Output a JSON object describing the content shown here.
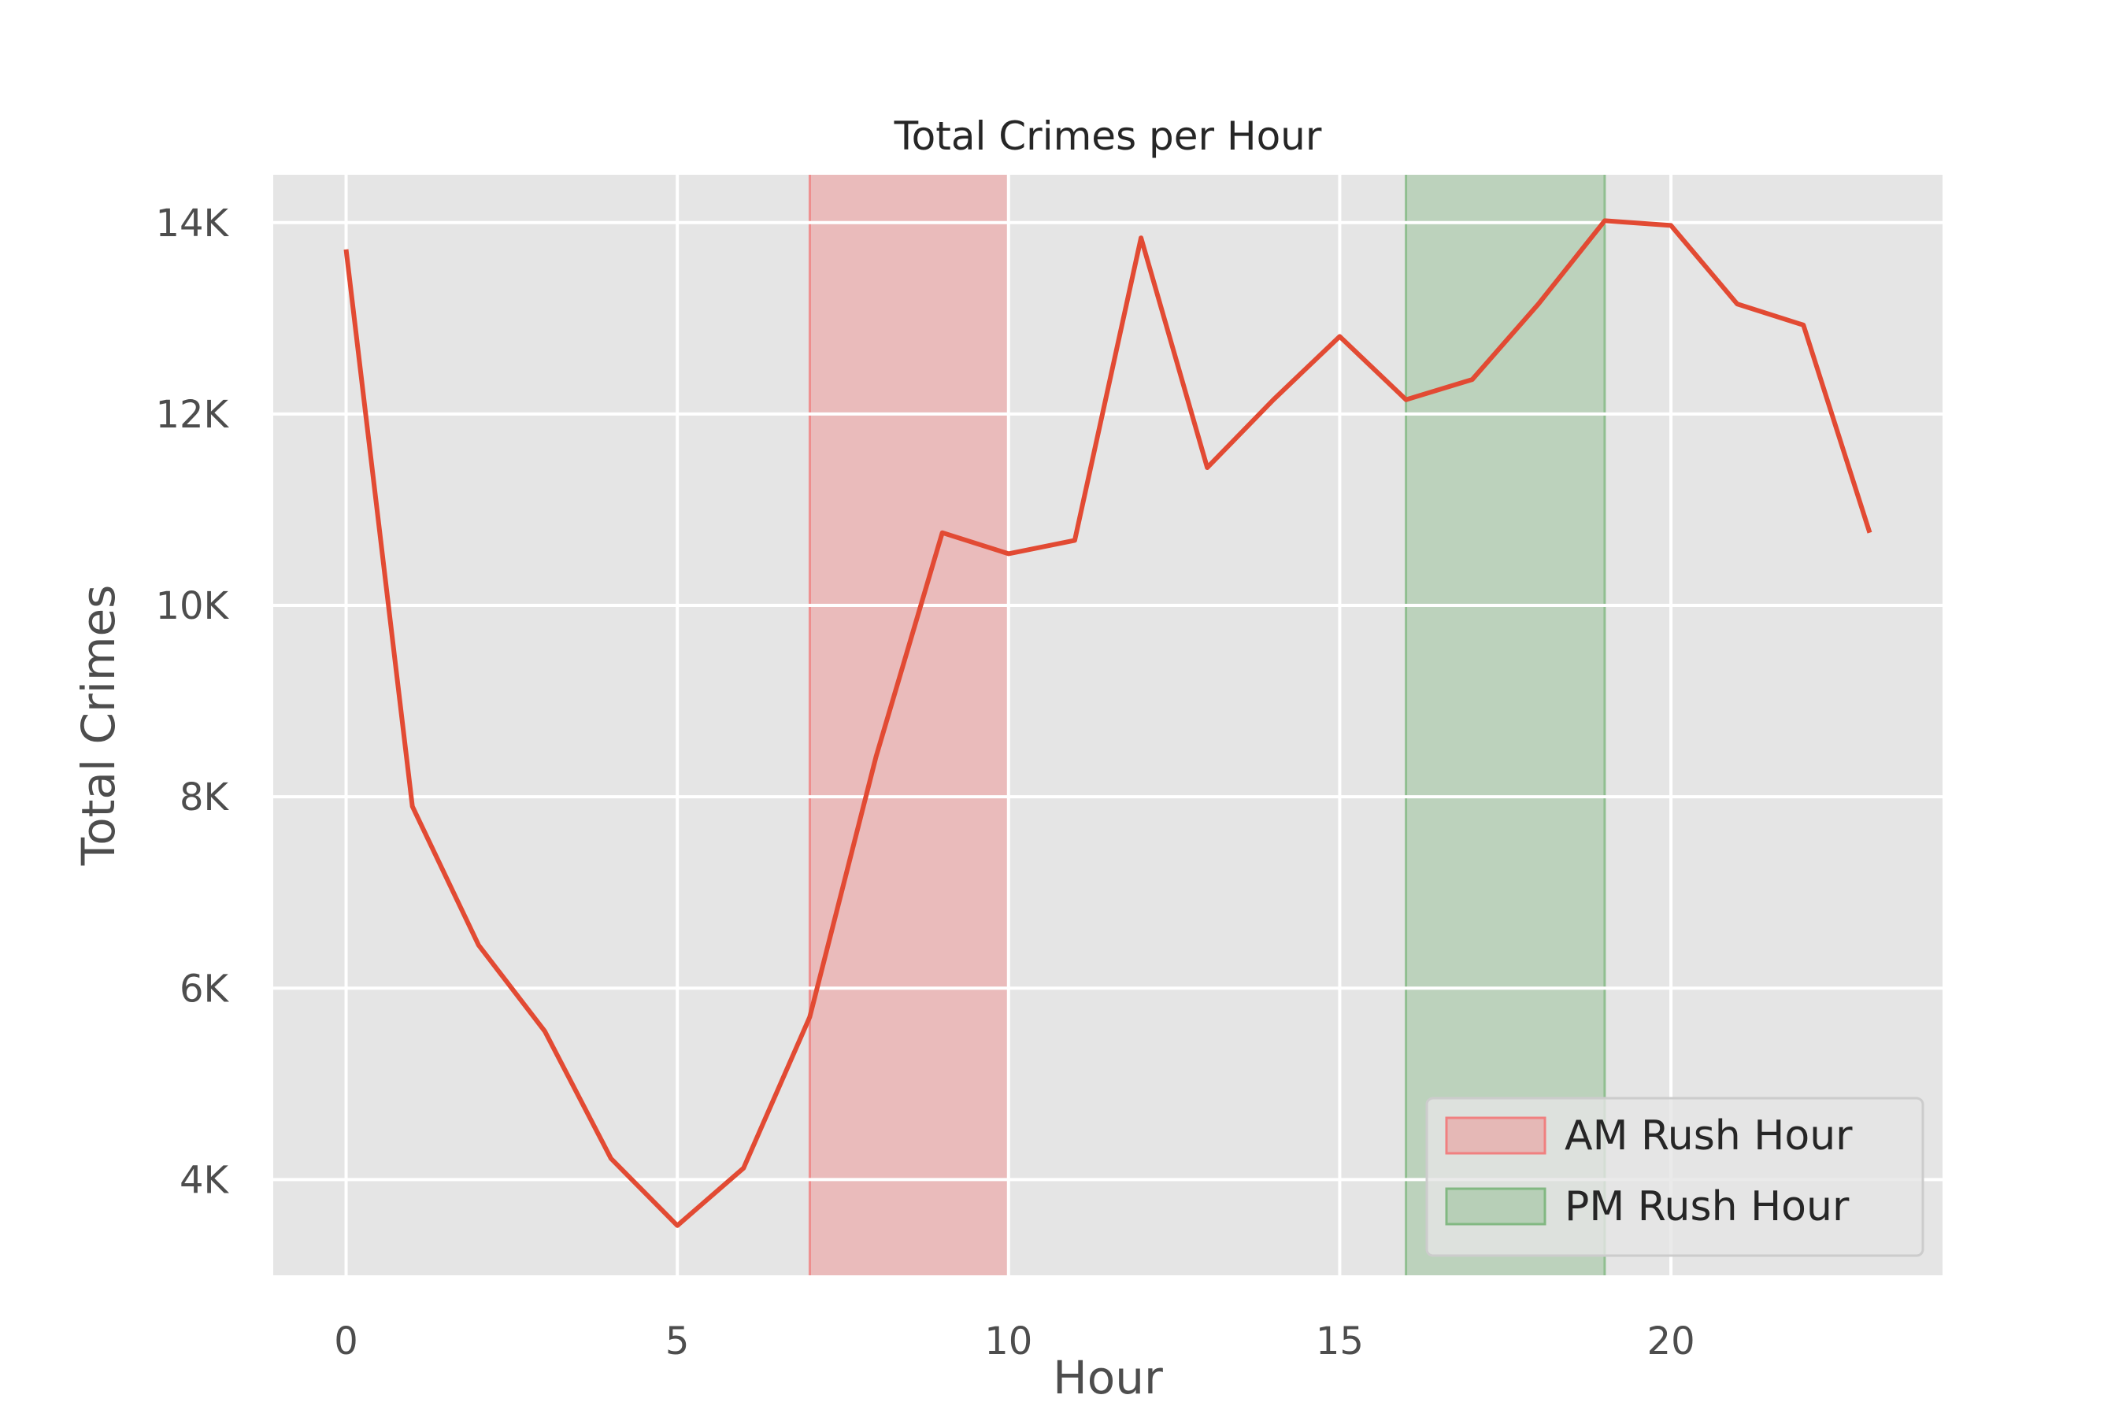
{
  "chart_data": {
    "type": "line",
    "title": "Total Crimes per Hour",
    "xlabel": "Hour",
    "ylabel": "Total Crimes",
    "xlim": [
      -1.1,
      24.1
    ],
    "ylim": [
      3000,
      14500
    ],
    "xticks": [
      0,
      5,
      10,
      15,
      20
    ],
    "yticks": [
      4000,
      6000,
      8000,
      10000,
      12000,
      14000
    ],
    "ytick_labels": [
      "4K",
      "6K",
      "8K",
      "10K",
      "12K",
      "14K"
    ],
    "grid": true,
    "legend_position": "lower-right",
    "series": [
      {
        "x": [
          0,
          1,
          2,
          3,
          4,
          5,
          6,
          7,
          8,
          9,
          10,
          11,
          12,
          13,
          14,
          15,
          16,
          17,
          18,
          19,
          20,
          21,
          22,
          23
        ],
        "values": [
          13720,
          7900,
          6450,
          5550,
          4220,
          3520,
          4120,
          5700,
          8420,
          10760,
          10540,
          10680,
          13840,
          11440,
          12150,
          12810,
          12150,
          12360,
          13150,
          14020,
          13970,
          13150,
          12930,
          10760
        ],
        "color": "#e24a33"
      }
    ],
    "spans": [
      {
        "label": "AM Rush Hour",
        "start": 7,
        "end": 10,
        "color": "#f08080"
      },
      {
        "label": "PM Rush Hour",
        "start": 16,
        "end": 19,
        "color": "#82b882"
      }
    ],
    "colors": {
      "plot_bg": "#e5e5e5",
      "grid": "#ffffff",
      "line": "#e24a33"
    }
  }
}
